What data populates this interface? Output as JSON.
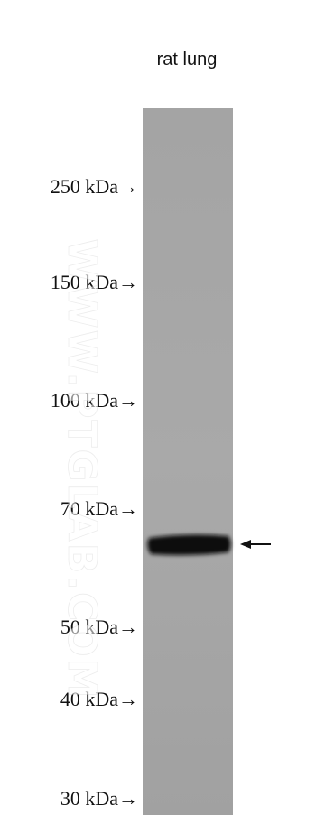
{
  "lane_label": "rat lung",
  "markers": [
    "250 kDa→",
    "150 kDa→",
    "100 kDa→",
    "70 kDa→",
    "50 kDa→",
    "40 kDa→",
    "30 kDa→"
  ],
  "watermark": "WWW.PTGLAB.COM"
}
